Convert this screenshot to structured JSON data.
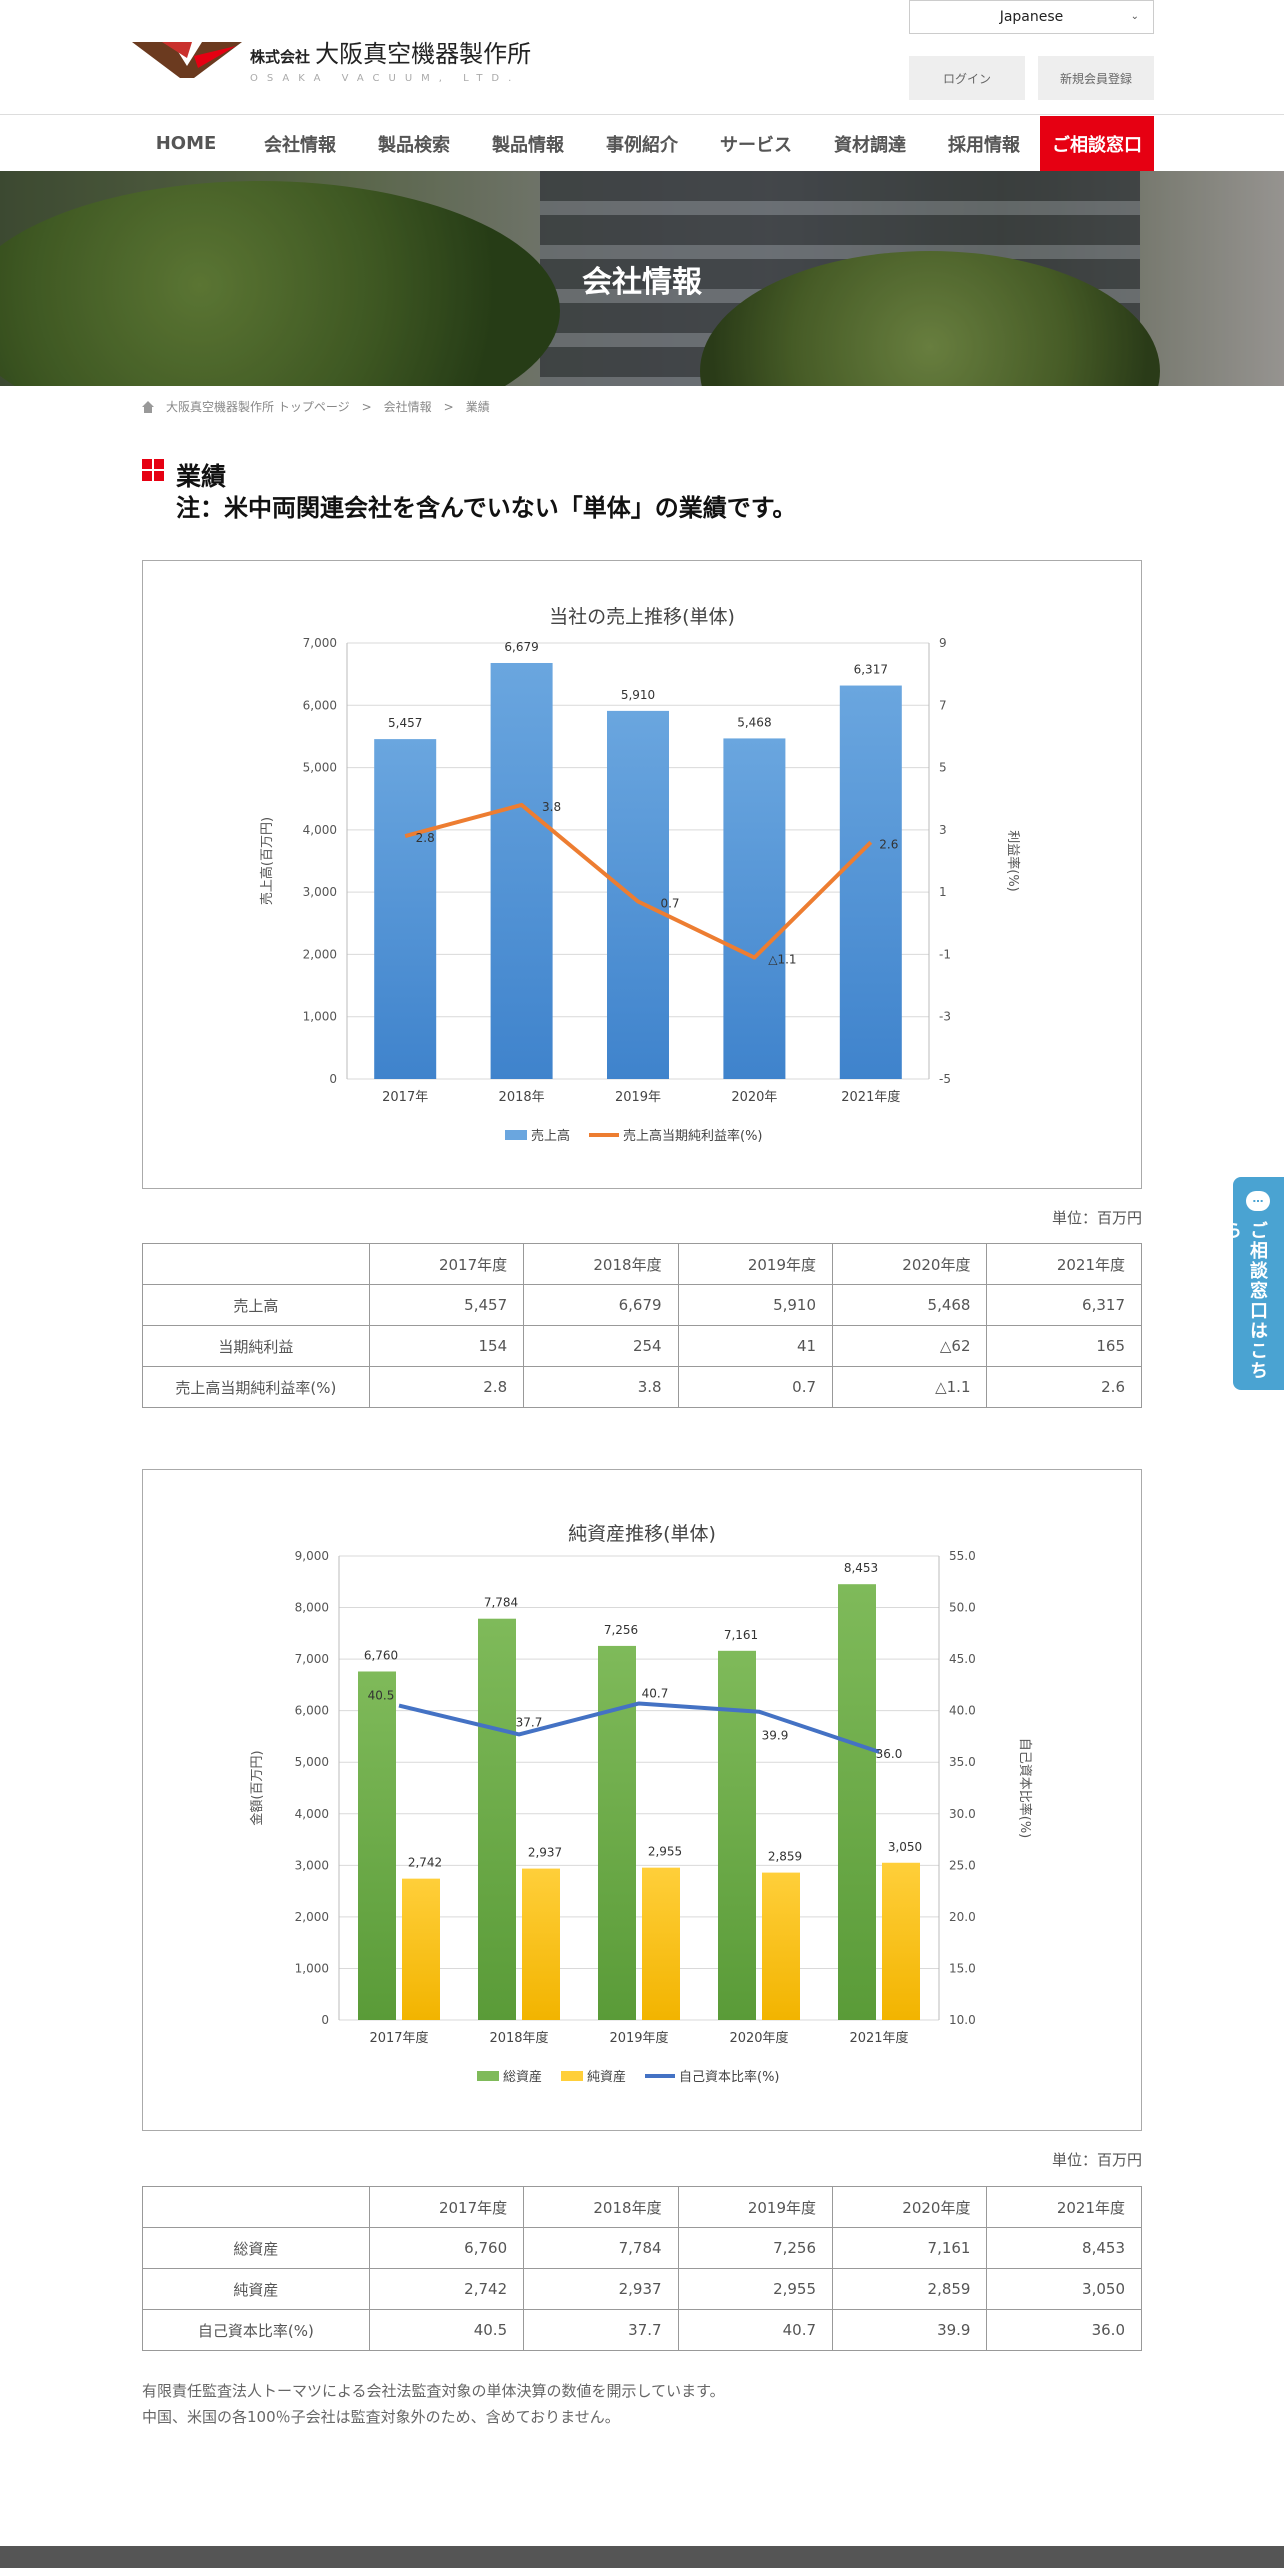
{
  "header": {
    "company_prefix": "株式会社",
    "company_name": "大阪真空機器製作所",
    "company_en": "OSAKA VACUUM, LTD.",
    "language": "Japanese",
    "login_label": "ログイン",
    "register_label": "新規会員登録"
  },
  "nav": {
    "items": [
      "HOME",
      "会社情報",
      "製品検索",
      "製品情報",
      "事例紹介",
      "サービス",
      "資材調達",
      "採用情報"
    ],
    "cta": "ご相談窓口"
  },
  "hero": {
    "title": "会社情報"
  },
  "breadcrumb": {
    "items": [
      "大阪真空機器製作所 トップページ",
      "会社情報",
      "業績"
    ],
    "separator": ">"
  },
  "section": {
    "title": "業績",
    "note": "注：米中両関連会社を含んでいない「単体」の業績です。"
  },
  "colors": {
    "accent_red": "#e60012",
    "blue_bar": "#5b9bd5",
    "orange_line": "#ed7d31",
    "green_bar": "#70ad47",
    "yellow_bar": "#ffc000",
    "navy_line": "#4472c4",
    "side_tab": "#4aa3d2"
  },
  "chart_data": [
    {
      "type": "bar",
      "title": "当社の売上推移(単体)",
      "categories": [
        "2017年",
        "2018年",
        "2019年",
        "2020年",
        "2021年度"
      ],
      "series": [
        {
          "name": "売上高",
          "type": "bar",
          "axis": "left",
          "values": [
            5457,
            6679,
            5910,
            5468,
            6317
          ],
          "labels": [
            "5,457",
            "6,679",
            "5,910",
            "5,468",
            "6,317"
          ]
        },
        {
          "name": "売上高当期純利益率(%)",
          "type": "line",
          "axis": "right",
          "values": [
            2.8,
            3.8,
            0.7,
            -1.1,
            2.6
          ],
          "labels": [
            "2.8",
            "3.8",
            "0.7",
            "△1.1",
            "2.6"
          ]
        }
      ],
      "ylabel": "売上高(百万円)",
      "y2label": "利益率(%)",
      "ylim": [
        0,
        7000
      ],
      "yticks": [
        "0",
        "1,000",
        "2,000",
        "3,000",
        "4,000",
        "5,000",
        "6,000",
        "7,000"
      ],
      "y2lim": [
        -5,
        9
      ],
      "y2ticks": [
        "-5",
        "-3",
        "-1",
        "1",
        "3",
        "5",
        "7",
        "9"
      ],
      "legend": "bottom",
      "grid": true
    },
    {
      "type": "bar",
      "title": "純資産推移(単体)",
      "categories": [
        "2017年度",
        "2018年度",
        "2019年度",
        "2020年度",
        "2021年度"
      ],
      "series": [
        {
          "name": "総資産",
          "type": "bar",
          "axis": "left",
          "values": [
            6760,
            7784,
            7256,
            7161,
            8453
          ],
          "labels": [
            "6,760",
            "7,784",
            "7,256",
            "7,161",
            "8,453"
          ]
        },
        {
          "name": "純資産",
          "type": "bar",
          "axis": "left",
          "values": [
            2742,
            2937,
            2955,
            2859,
            3050
          ],
          "labels": [
            "2,742",
            "2,937",
            "2,955",
            "2,859",
            "3,050"
          ]
        },
        {
          "name": "自己資本比率(%)",
          "type": "line",
          "axis": "right",
          "values": [
            40.5,
            37.7,
            40.7,
            39.9,
            36.0
          ],
          "labels": [
            "40.5",
            "37.7",
            "40.7",
            "39.9",
            "36.0"
          ]
        }
      ],
      "ylabel": "金額(百万円)",
      "y2label": "自己資本比率(%)",
      "ylim": [
        0,
        9000
      ],
      "yticks": [
        "0",
        "1,000",
        "2,000",
        "3,000",
        "4,000",
        "5,000",
        "6,000",
        "7,000",
        "8,000",
        "9,000"
      ],
      "y2lim": [
        10,
        55
      ],
      "y2ticks": [
        "10.0",
        "15.0",
        "20.0",
        "25.0",
        "30.0",
        "35.0",
        "40.0",
        "45.0",
        "50.0",
        "55.0"
      ],
      "legend": "bottom",
      "grid": true
    }
  ],
  "table1": {
    "unit": "単位：百万円",
    "headers": [
      "",
      "2017年度",
      "2018年度",
      "2019年度",
      "2020年度",
      "2021年度"
    ],
    "rows": [
      [
        "売上高",
        "5,457",
        "6,679",
        "5,910",
        "5,468",
        "6,317"
      ],
      [
        "当期純利益",
        "154",
        "254",
        "41",
        "△62",
        "165"
      ],
      [
        "売上高当期純利益率(%)",
        "2.8",
        "3.8",
        "0.7",
        "△1.1",
        "2.6"
      ]
    ]
  },
  "table2": {
    "unit": "単位：百万円",
    "headers": [
      "",
      "2017年度",
      "2018年度",
      "2019年度",
      "2020年度",
      "2021年度"
    ],
    "rows": [
      [
        "総資産",
        "6,760",
        "7,784",
        "7,256",
        "7,161",
        "8,453"
      ],
      [
        "純資産",
        "2,742",
        "2,937",
        "2,955",
        "2,859",
        "3,050"
      ],
      [
        "自己資本比率(%)",
        "40.5",
        "37.7",
        "40.7",
        "39.9",
        "36.0"
      ]
    ]
  },
  "footnotes": [
    "有限責任監査法人トーマツによる会社法監査対象の単体決算の数値を開示しています。",
    "中国、米国の各100％子会社は監査対象外のため、含めておりません。"
  ],
  "side_tab": {
    "label": "ご相談窓口はこちら",
    "icon_text": "…"
  }
}
